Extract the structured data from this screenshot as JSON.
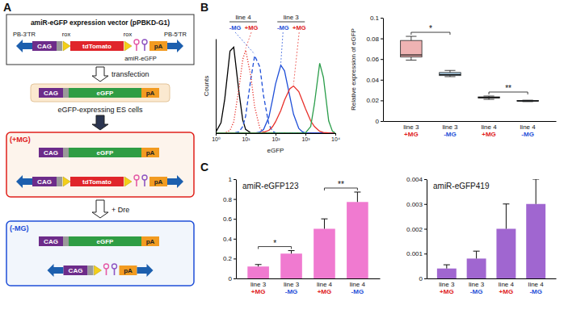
{
  "panel_labels": [
    "A",
    "B",
    "C"
  ],
  "diagram": {
    "vector": {
      "title": "amiR-eGFP expression vector (pPBKD-G1)",
      "tr_left": "PB-3'TR",
      "promoter": "CAG",
      "rox_left": "rox",
      "gene": "tdTomato",
      "rox_right": "rox",
      "mirna": "amiR-eGFP",
      "polya": "pA",
      "tr_right": "PB-5'TR"
    },
    "step1": "transfection",
    "es_cells": {
      "promoter": "CAG",
      "gene": "eGFP",
      "polya": "pA",
      "caption": "eGFP-expressing ES cells"
    },
    "plus_mg": {
      "title": "(+MG)",
      "reporter": {
        "promoter": "CAG",
        "gene": "eGFP",
        "polya": "pA"
      },
      "vector": {
        "promoter": "CAG",
        "gene": "tdTomato",
        "polya": "pA"
      }
    },
    "step2": "+ Dre",
    "minus_mg": {
      "title": "(-MG)",
      "reporter": {
        "promoter": "CAG",
        "gene": "eGFP",
        "polya": "pA"
      },
      "vector": {
        "promoter": "CAG",
        "polya": "pA"
      }
    }
  },
  "chart_data": [
    {
      "type": "line",
      "x_label": "eGFP",
      "y_label": "Counts",
      "log": "x",
      "tick_labels": "x",
      "x": [
        1,
        1.5,
        2,
        3,
        4,
        6,
        8,
        10,
        15,
        20,
        30,
        40,
        60,
        80,
        100,
        150,
        200,
        300,
        400,
        600,
        800,
        1000,
        1500,
        2000,
        3000,
        4000,
        6000,
        8000,
        10000
      ],
      "xlim": [
        1,
        10000
      ],
      "xticks": [
        {
          "value": 1,
          "label": "10⁰"
        },
        {
          "value": 10,
          "label": "10¹"
        },
        {
          "value": 100,
          "label": "10²"
        },
        {
          "value": 1000,
          "label": "10³"
        },
        {
          "value": 10000,
          "label": "10⁴"
        }
      ],
      "ylim": [
        0,
        100
      ],
      "series": [
        {
          "color": "#000000",
          "line_style": "solid",
          "values": [
            1,
            11,
            36,
            87,
            91,
            43,
            14,
            4,
            0.2,
            0,
            0,
            0,
            0,
            0,
            0,
            0,
            0,
            0,
            0,
            0,
            0,
            0,
            0,
            0,
            0,
            0,
            0,
            0,
            0
          ]
        },
        {
          "color": "#1f4fd8",
          "line_style": "dashed",
          "values": [
            0,
            0,
            0,
            0,
            0.1,
            1.4,
            7,
            18,
            58,
            82,
            70,
            39,
            9,
            2,
            0.4,
            0,
            0,
            0,
            0,
            0,
            0,
            0,
            0,
            0,
            0,
            0,
            0,
            0,
            0
          ]
        },
        {
          "color": "#e8302a",
          "line_style": "dotted",
          "values": [
            0,
            0,
            0.2,
            3,
            12,
            48,
            78,
            88,
            60,
            28,
            5,
            1,
            0,
            0,
            0,
            0,
            0,
            0,
            0,
            0,
            0,
            0,
            0,
            0,
            0,
            0,
            0,
            0,
            0
          ]
        },
        {
          "color": "#1f4fd8",
          "line_style": "solid",
          "values": [
            0,
            0,
            0,
            0,
            0,
            0,
            0,
            0,
            0,
            0.1,
            1.1,
            4,
            17,
            36,
            52,
            72,
            66,
            39,
            20,
            5,
            1.4,
            0.4,
            0,
            0,
            0,
            0,
            0,
            0,
            0
          ]
        },
        {
          "color": "#e8302a",
          "line_style": "solid",
          "values": [
            0,
            0,
            0,
            0,
            0,
            0,
            0,
            0,
            0,
            0,
            0.3,
            0.9,
            3,
            7,
            12,
            24,
            35,
            47,
            50,
            44,
            34,
            26,
            13,
            7,
            2,
            0.8,
            0.2,
            0,
            0
          ]
        },
        {
          "color": "#2a9d4a",
          "line_style": "solid",
          "values": [
            0,
            0,
            0,
            0,
            0,
            0,
            0,
            0,
            0,
            0,
            0,
            0,
            0,
            0,
            0,
            0,
            0,
            0,
            0,
            0,
            0,
            0.3,
            7,
            31,
            74,
            59,
            13,
            2,
            0.3
          ]
        }
      ],
      "annotations": [
        {
          "label": "line 4",
          "items": [
            "-MG",
            "+MG"
          ]
        },
        {
          "label": "line 3",
          "items": [
            "-MG",
            "+MG"
          ]
        }
      ]
    },
    {
      "type": "box",
      "y_label": "Relative expression of eGFP",
      "categories": [
        "line 3 +MG",
        "line 3 -MG",
        "line 4 +MG",
        "line 4 -MG"
      ],
      "min": [
        0.059,
        0.043,
        0.021,
        0.0188
      ],
      "q1": [
        0.062,
        0.044,
        0.0222,
        0.0192
      ],
      "median": [
        0.064,
        0.045,
        0.0228,
        0.0195
      ],
      "q3": [
        0.078,
        0.047,
        0.0234,
        0.0199
      ],
      "max": [
        0.082,
        0.049,
        0.0242,
        0.0202
      ],
      "colors": [
        "#efb3b3",
        "#b3d6ee",
        "#444444",
        "#3f6aa8"
      ],
      "ylim": [
        0,
        0.1
      ],
      "yticks": [
        0,
        0.02,
        0.04,
        0.06,
        0.08,
        0.1
      ],
      "significance": [
        {
          "pair": [
            0,
            1
          ],
          "label": "*"
        },
        {
          "pair": [
            2,
            3
          ],
          "label": "**"
        }
      ]
    },
    {
      "type": "bar",
      "title": "amiR-eGFP123",
      "categories": [
        "line 3 +MG",
        "line 3 -MG",
        "line 4 +MG",
        "line 4 -MG"
      ],
      "values": [
        0.12,
        0.25,
        0.5,
        0.77
      ],
      "errors": [
        0.02,
        0.03,
        0.1,
        0.1
      ],
      "color": "#f07ad0",
      "ylim": [
        0,
        1
      ],
      "yticks": [
        0,
        0.2,
        0.4,
        0.6,
        0.8,
        1
      ],
      "significance": [
        {
          "pair": [
            0,
            1
          ],
          "label": "*"
        },
        {
          "pair": [
            2,
            3
          ],
          "label": "**"
        }
      ]
    },
    {
      "type": "bar",
      "title": "amiR-eGFP419",
      "categories": [
        "line 3 +MG",
        "line 3 -MG",
        "line 4 +MG",
        "line 4 -MG"
      ],
      "values": [
        0.0004,
        0.0008,
        0.002,
        0.003
      ],
      "errors": [
        0.00015,
        0.0003,
        0.001,
        0.001
      ],
      "color": "#a066d0",
      "ylim": [
        0,
        0.004
      ],
      "yticks": [
        0,
        0.001,
        0.002,
        0.003,
        0.004
      ]
    }
  ]
}
